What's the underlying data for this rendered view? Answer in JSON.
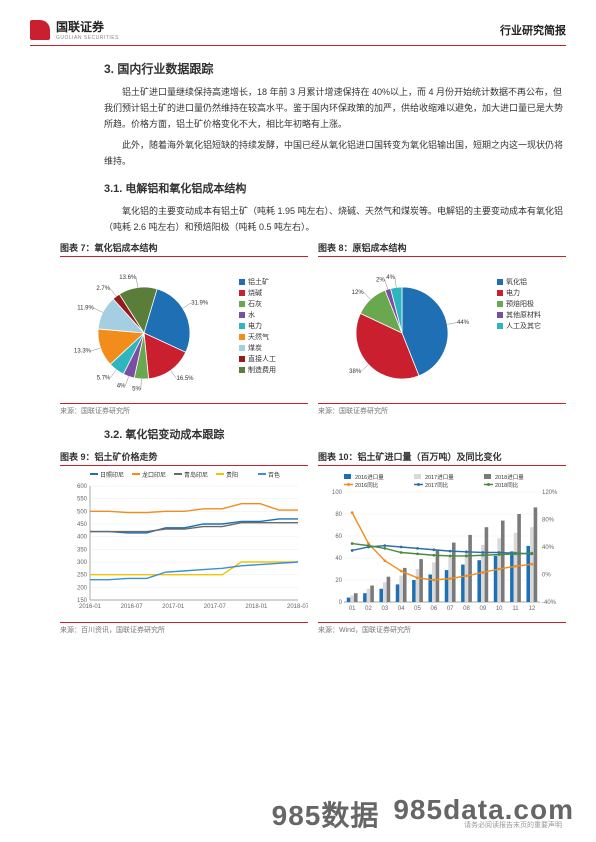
{
  "header": {
    "logo_cn": "国联证券",
    "logo_en": "GUOLIAN SECURITIES",
    "right": "行业研究简报"
  },
  "s3": {
    "title": "3.  国内行业数据跟踪",
    "p1": "铝土矿进口量继续保持高速增长，18 年前 3 月累计增速保持在 40%以上，而 4 月份开始统计数据不再公布，但我们预计铝土矿的进口量仍然维持在较高水平。鉴于国内环保政策的加严，供给收缩难以避免，加大进口量已是大势所趋。价格方面，铝土矿价格变化不大，相比年初略有上涨。",
    "p2": "此外，随着海外氧化铝短缺的持续发酵，中国已经从氧化铝进口国转变为氧化铝输出国，短期之内这一现状仍将维持。",
    "s31_title": "3.1. 电解铝和氧化铝成本结构",
    "p3": "氧化铝的主要变动成本有铝土矿（吨耗 1.95 吨左右）、烧碱、天然气和煤炭等。电解铝的主要变动成本有氧化铝（吨耗 2.6 吨左右）和预焙阳极（吨耗 0.5 吨左右）。",
    "s32_title": "3.2. 氧化铝变动成本跟踪"
  },
  "fig7": {
    "title": "图表 7：氧化铝成本结构",
    "source": "来源：国联证券研究所",
    "slices": [
      {
        "label": "铝土矿",
        "pct": 31.9,
        "color": "#1f6fb4"
      },
      {
        "label": "烧碱",
        "pct": 16.5,
        "color": "#c91f2f"
      },
      {
        "label": "石灰",
        "pct": 5.0,
        "color": "#6aa84f"
      },
      {
        "label": "水",
        "pct": 4.0,
        "color": "#7a4ea3"
      },
      {
        "label": "电力",
        "pct": 5.7,
        "color": "#2fb5bd"
      },
      {
        "label": "天然气",
        "pct": 13.3,
        "color": "#f28c1b"
      },
      {
        "label": "煤炭",
        "pct": 11.9,
        "color": "#a6cee3"
      },
      {
        "label": "直接人工",
        "pct": 2.7,
        "color": "#951a1a"
      },
      {
        "label": "制造费用",
        "pct": 13.6,
        "color": "#5a7d3a"
      }
    ],
    "label_fontsize": 6
  },
  "fig8": {
    "title": "图表 8：原铝成本结构",
    "source": "来源：国联证券研究所",
    "slices": [
      {
        "label": "氧化铝",
        "pct": 44,
        "color": "#1f6fb4"
      },
      {
        "label": "电力",
        "pct": 38,
        "color": "#c91f2f"
      },
      {
        "label": "预焙阳极",
        "pct": 12,
        "color": "#6aa84f"
      },
      {
        "label": "其他原材料",
        "pct": 2,
        "color": "#7a4ea3"
      },
      {
        "label": "人工及其它",
        "pct": 4,
        "color": "#2fb5bd"
      }
    ],
    "label_fontsize": 6
  },
  "fig9": {
    "title": "图表 9：铝土矿价格走势",
    "source": "来源：百川资讯，国联证券研究所",
    "ylim": [
      150,
      600
    ],
    "ytick_step": 50,
    "xlabels": [
      "2016-01",
      "2016-07",
      "2017-01",
      "2017-07",
      "2018-01",
      "2018-07"
    ],
    "series": [
      {
        "name": "日照印尼",
        "color": "#1f6fb4",
        "y": [
          420,
          420,
          415,
          415,
          435,
          435,
          450,
          450,
          460,
          460,
          470,
          470
        ]
      },
      {
        "name": "龙口印尼",
        "color": "#f28c1b",
        "y": [
          500,
          500,
          495,
          495,
          500,
          500,
          510,
          510,
          530,
          530,
          505,
          505
        ]
      },
      {
        "name": "青岛印尼",
        "color": "#6a6a6a",
        "y": [
          420,
          420,
          420,
          420,
          430,
          430,
          440,
          440,
          455,
          455,
          455,
          455
        ]
      },
      {
        "name": "贵阳",
        "color": "#f2c400",
        "y": [
          250,
          250,
          250,
          250,
          250,
          250,
          250,
          250,
          300,
          300,
          300,
          300
        ]
      },
      {
        "name": "百色",
        "color": "#3b8fd4",
        "y": [
          230,
          230,
          235,
          235,
          260,
          265,
          270,
          275,
          285,
          290,
          295,
          300
        ]
      }
    ],
    "line_width": 1.4
  },
  "fig10": {
    "title": "图表 10：铝土矿进口量（百万吨）及同比变化",
    "source": "来源：Wind，国联证券研究所",
    "xlabels": [
      "01",
      "02",
      "03",
      "04",
      "05",
      "06",
      "07",
      "08",
      "09",
      "10",
      "11",
      "12"
    ],
    "left_ylim": [
      0,
      100
    ],
    "left_step": 20,
    "right_ylim": [
      -40,
      120
    ],
    "right_step": 40,
    "bars": [
      {
        "name": "2016进口量",
        "color": "#1f6fb4",
        "y": [
          4,
          8,
          12,
          16,
          20,
          25,
          29,
          34,
          38,
          42,
          46,
          51
        ]
      },
      {
        "name": "2017进口量",
        "color": "#d9d9d9",
        "y": [
          6,
          12,
          18,
          24,
          30,
          36,
          41,
          46,
          52,
          58,
          63,
          68
        ]
      },
      {
        "name": "2018进口量",
        "color": "#7a7a7a",
        "y": [
          8,
          15,
          23,
          31,
          39,
          47,
          54,
          61,
          68,
          74,
          80,
          86
        ]
      }
    ],
    "lines": [
      {
        "name": "2016同比",
        "color": "#f28c1b",
        "y": [
          90,
          45,
          20,
          5,
          -5,
          -8,
          -6,
          -2,
          3,
          8,
          12,
          15
        ]
      },
      {
        "name": "2017同比",
        "color": "#2f6fa8",
        "y": [
          35,
          40,
          42,
          40,
          38,
          36,
          34,
          33,
          32,
          32,
          31,
          30
        ]
      },
      {
        "name": "2018同比",
        "color": "#4a8a3a",
        "y": [
          45,
          42,
          38,
          32,
          30,
          28,
          27,
          27,
          28,
          29,
          30,
          31
        ]
      }
    ],
    "bar_width": 0.22,
    "line_width": 1.4
  },
  "watermark": {
    "a": "985数据",
    "b": "985data.com"
  },
  "footer": "请务必阅读报告末页的重要声明"
}
